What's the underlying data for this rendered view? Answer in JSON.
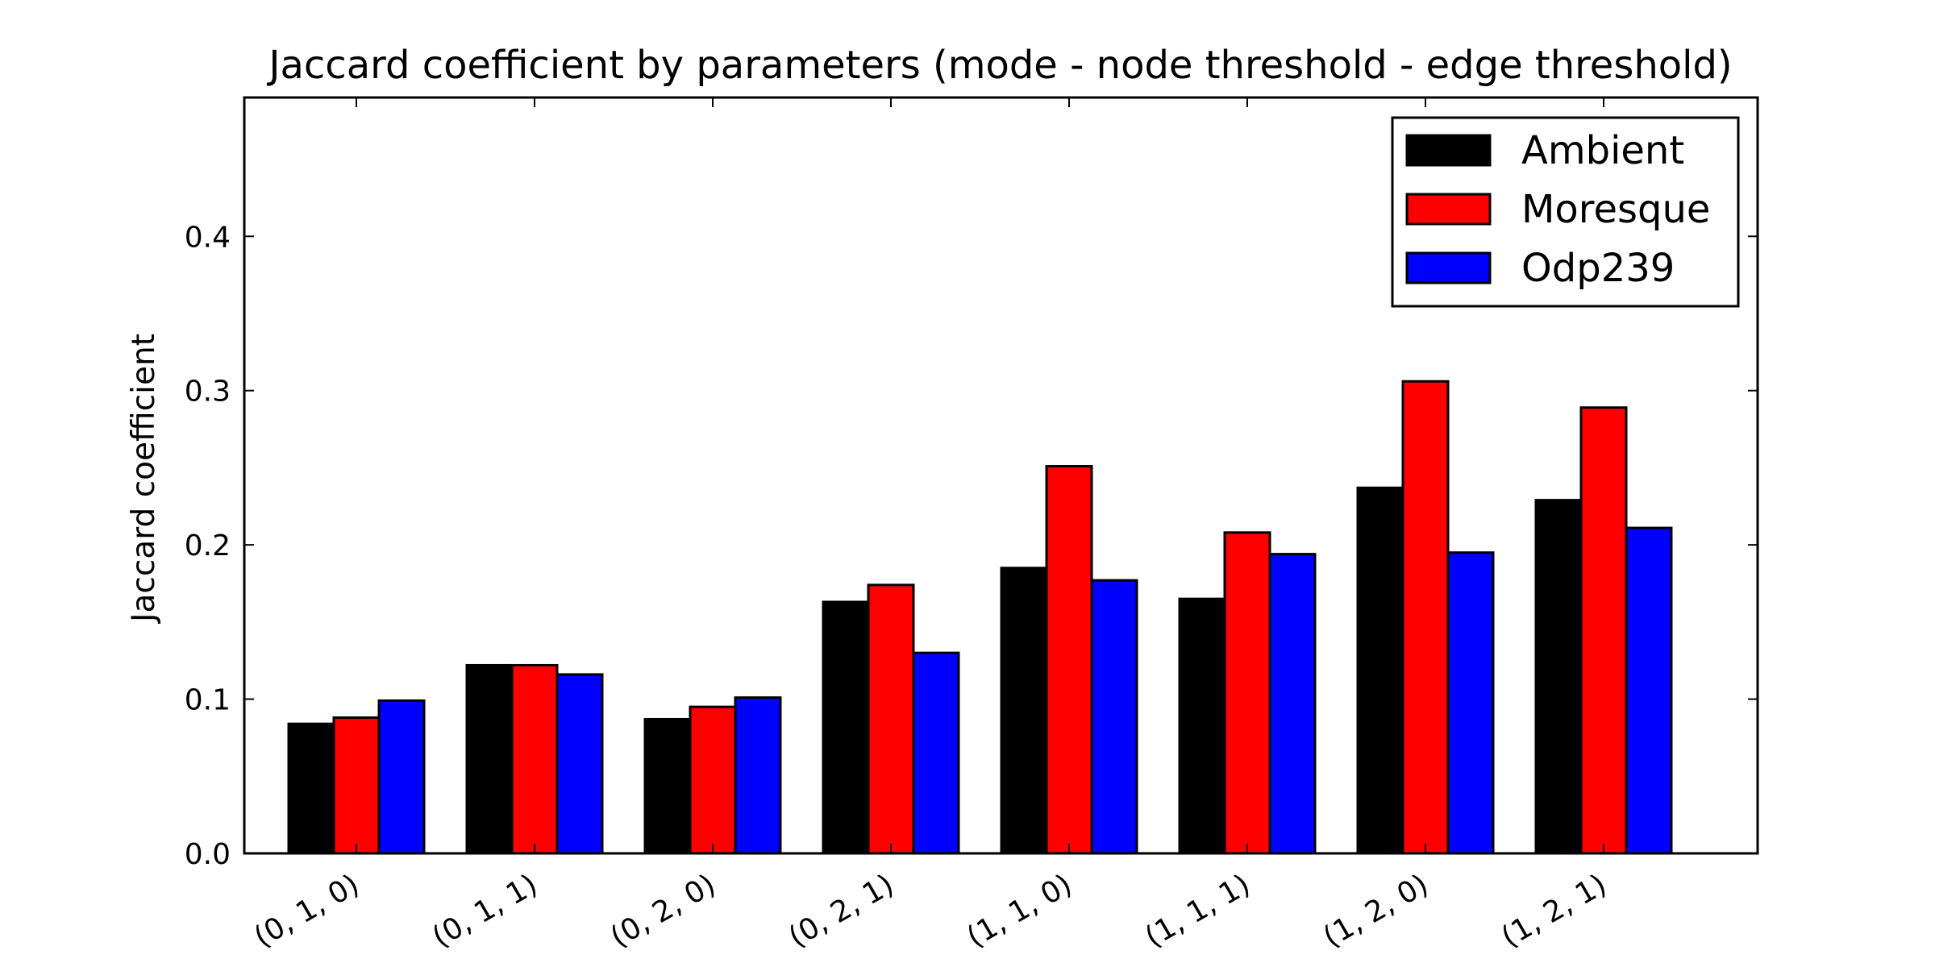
{
  "chart_data": {
    "type": "bar",
    "title": "Jaccard coefficient by parameters (mode - node threshold - edge threshold)",
    "xlabel": "",
    "ylabel": "Jaccard coefficient",
    "ylim": [
      0,
      0.49
    ],
    "yticks": [
      0.0,
      0.1,
      0.2,
      0.3,
      0.4
    ],
    "ytick_labels": [
      "0.0",
      "0.1",
      "0.2",
      "0.3",
      "0.4"
    ],
    "grid": false,
    "legend_position": "top-right",
    "categories": [
      "(0, 1, 0)",
      "(0, 1, 1)",
      "(0, 2, 0)",
      "(0, 2, 1)",
      "(1, 1, 0)",
      "(1, 1, 1)",
      "(1, 2, 0)",
      "(1, 2, 1)"
    ],
    "series": [
      {
        "name": "Ambient",
        "color": "#000000",
        "values": [
          0.084,
          0.122,
          0.087,
          0.163,
          0.185,
          0.165,
          0.237,
          0.229
        ]
      },
      {
        "name": "Moresque",
        "color": "#ff0000",
        "values": [
          0.088,
          0.122,
          0.095,
          0.174,
          0.251,
          0.208,
          0.306,
          0.289
        ]
      },
      {
        "name": "Odp239",
        "color": "#0000ff",
        "values": [
          0.099,
          0.116,
          0.101,
          0.13,
          0.177,
          0.194,
          0.195,
          0.211
        ]
      }
    ]
  }
}
